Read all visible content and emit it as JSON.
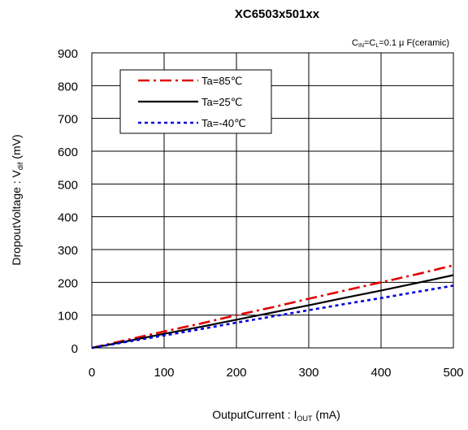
{
  "chart_data": {
    "type": "line",
    "title": "XC6503x501xx",
    "condition": {
      "cin": "C",
      "cin_sub": "IN",
      "eq1": "=C",
      "cl_sub": "L",
      "rest": "=0.1 μ F(ceramic)"
    },
    "xlabel": {
      "prefix": "OutputCurrent : I",
      "sub": "OUT",
      "suffix": " (mA)"
    },
    "ylabel": {
      "prefix": "DropoutVoltage : V",
      "sub": "dif",
      "suffix": " (mV)"
    },
    "xlim": [
      0,
      500
    ],
    "ylim": [
      0,
      900
    ],
    "xticks": [
      0,
      100,
      200,
      300,
      400,
      500
    ],
    "yticks": [
      0,
      100,
      200,
      300,
      400,
      500,
      600,
      700,
      800,
      900
    ],
    "grid": true,
    "legend_position": "top-left",
    "series": [
      {
        "name": "Ta=85℃",
        "color": "#e00000",
        "dash": "dashdot",
        "x": [
          0,
          50,
          100,
          150,
          200,
          250,
          300,
          350,
          400,
          450,
          500
        ],
        "y": [
          0,
          25,
          50,
          74,
          100,
          124,
          150,
          175,
          200,
          225,
          252
        ]
      },
      {
        "name": "Ta=25℃",
        "color": "#000000",
        "dash": "solid",
        "x": [
          0,
          50,
          100,
          150,
          200,
          250,
          300,
          350,
          400,
          450,
          500
        ],
        "y": [
          0,
          21,
          43,
          64,
          86,
          108,
          130,
          153,
          175,
          198,
          222
        ]
      },
      {
        "name": "Ta=-40℃",
        "color": "#0000e0",
        "dash": "dotted",
        "x": [
          0,
          50,
          100,
          150,
          200,
          250,
          300,
          350,
          400,
          450,
          500
        ],
        "y": [
          0,
          19,
          38,
          57,
          77,
          96,
          115,
          134,
          152,
          171,
          190
        ]
      }
    ]
  }
}
